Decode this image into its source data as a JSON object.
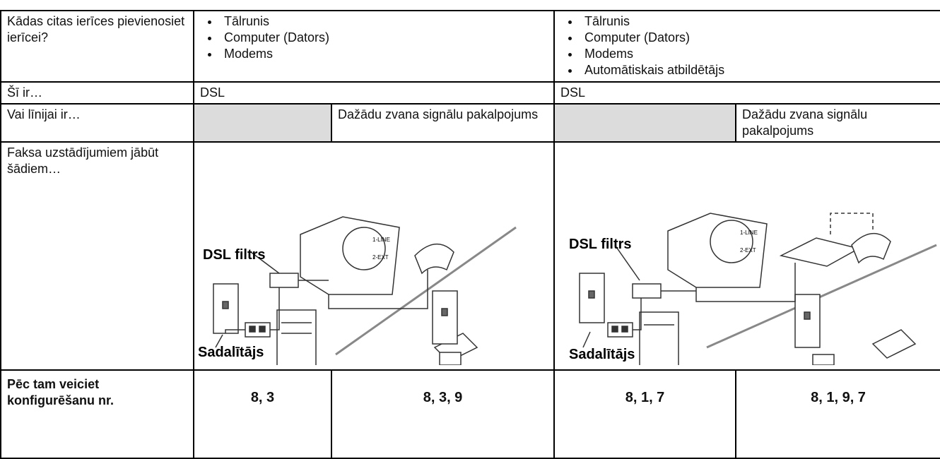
{
  "devices": {
    "label": "Kādas citas ierīces pievienosiet ierīcei?",
    "left": [
      "Tālrunis",
      "Computer (Dators)",
      "Modems"
    ],
    "right": [
      "Tālrunis",
      "Computer (Dators)",
      "Modems",
      "Automātiskais atbildētājs"
    ]
  },
  "type_row": {
    "label": "Šī ir…",
    "left": "DSL",
    "right": "DSL"
  },
  "line_row": {
    "label": "Vai līnijai ir…",
    "left": "Dažādu zvana signālu pakalpojums",
    "right": "Dažādu zvana signālu pakalpojums"
  },
  "settings_row": {
    "label": "Faksa uzstādījumiem jābūt šādiem…",
    "diagrams": [
      {
        "filter": "DSL filtrs",
        "splitter": "Sadalītājs",
        "port1": "1-LINE",
        "port2": "2-EXT"
      },
      {
        "filter": "DSL filtrs",
        "splitter": "Sadalītājs",
        "port1": "1-LINE",
        "port2": "2-EXT"
      }
    ]
  },
  "then_row": {
    "label": "Pēc tam veiciet konfigurēšanu nr.",
    "values": [
      "8, 3",
      "8, 3, 9",
      "8, 1, 7",
      "8, 1, 9, 7"
    ]
  }
}
